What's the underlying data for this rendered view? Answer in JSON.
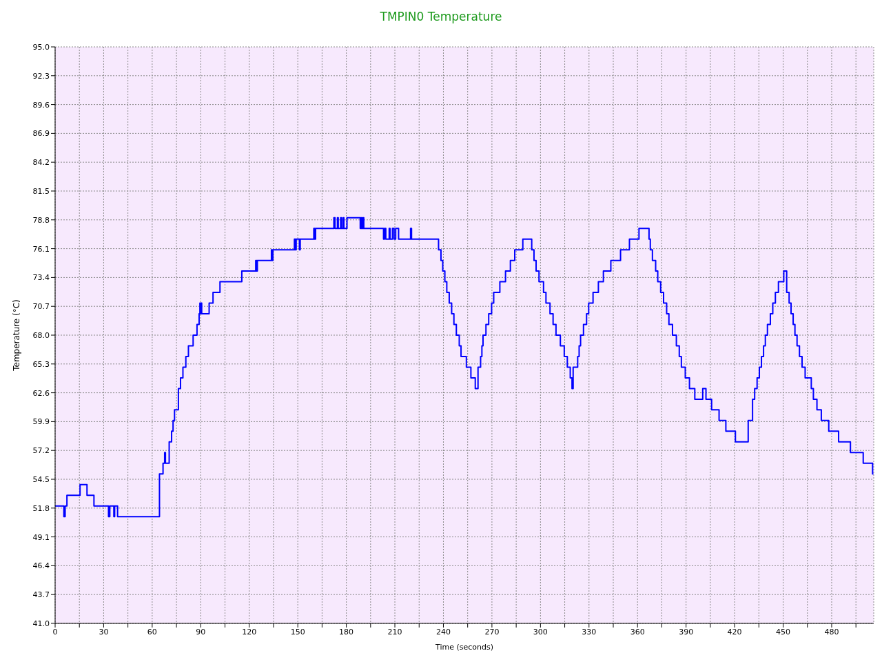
{
  "chart_data": {
    "type": "step",
    "title": "TMPIN0 Temperature",
    "xlabel": "Time (seconds)",
    "ylabel": "Temperature (°C)",
    "xlim": [
      0,
      506
    ],
    "xticks": [
      0,
      {
        "value": 15,
        "label": null
      },
      30,
      {
        "value": 45,
        "label": null
      },
      60,
      {
        "value": 75,
        "label": null
      },
      90,
      {
        "value": 105,
        "label": null
      },
      120,
      {
        "value": 135,
        "label": null
      },
      150,
      {
        "value": 165,
        "label": null
      },
      180,
      {
        "value": 195,
        "label": null
      },
      210,
      {
        "value": 225,
        "label": null
      },
      240,
      {
        "value": 255,
        "label": null
      },
      270,
      {
        "value": 285,
        "label": null
      },
      300,
      {
        "value": 315,
        "label": null
      },
      330,
      {
        "value": 345,
        "label": null
      },
      360,
      {
        "value": 375,
        "label": null
      },
      390,
      {
        "value": 405,
        "label": null
      },
      420,
      {
        "value": 435,
        "label": null
      },
      450,
      {
        "value": 465,
        "label": null
      },
      480,
      {
        "value": 495,
        "label": null
      }
    ],
    "ylim": [
      41,
      95
    ],
    "yticks": [
      {
        "value": 41,
        "label": "41.0"
      },
      {
        "value": 43.7,
        "label": "43.7"
      },
      {
        "value": 46.4,
        "label": "46.4"
      },
      {
        "value": 49.1,
        "label": "49.1"
      },
      {
        "value": 51.8,
        "label": "51.8"
      },
      {
        "value": 54.5,
        "label": "54.5"
      },
      {
        "value": 57.2,
        "label": "57.2"
      },
      {
        "value": 59.9,
        "label": "59.9"
      },
      {
        "value": 62.6,
        "label": "62.6"
      },
      {
        "value": 65.3,
        "label": "65.3"
      },
      {
        "value": 68,
        "label": "68.0"
      },
      {
        "value": 70.7,
        "label": "70.7"
      },
      {
        "value": 73.4,
        "label": "73.4"
      },
      {
        "value": 76.1,
        "label": "76.1"
      },
      {
        "value": 78.8,
        "label": "78.8"
      },
      {
        "value": 81.5,
        "label": "81.5"
      },
      {
        "value": 84.2,
        "label": "84.2"
      },
      {
        "value": 86.9,
        "label": "86.9"
      },
      {
        "value": 89.6,
        "label": "89.6"
      },
      {
        "value": 92.3,
        "label": "92.3"
      },
      {
        "value": 95,
        "label": "95.0"
      }
    ],
    "grid": true,
    "marker": "none",
    "line_style": "solid",
    "series": [
      {
        "color": "#0000ff",
        "x": [
          0,
          5.4,
          6.2,
          7.3,
          15.4,
          19.7,
          24,
          33,
          33.8,
          36.3,
          36.8,
          38.6,
          64.5,
          66.7,
          67.7,
          68.2,
          70.5,
          72,
          72.9,
          73.8,
          76.2,
          77.5,
          79,
          80.8,
          82.4,
          85.3,
          87.7,
          89,
          89.5,
          89.8,
          90.3,
          90.6,
          95.2,
          97.6,
          101.9,
          115.4,
          124,
          124.5,
          125,
          133.7,
          134.2,
          134.6,
          147.9,
          148.5,
          149,
          151,
          151.5,
          159.9,
          160.5,
          161,
          172.3,
          173,
          174.5,
          175,
          176.5,
          177,
          178,
          178.5,
          180.4,
          188.6,
          189,
          189.6,
          190.2,
          190.8,
          203,
          203.6,
          204.4,
          206.5,
          207,
          208.5,
          209.5,
          210.5,
          212.3,
          219.7,
          220.3,
          237,
          238.5,
          239.6,
          240.9,
          242.1,
          243.6,
          245.1,
          246.5,
          248,
          249.8,
          250.9,
          254.2,
          257,
          259.7,
          261.4,
          263,
          263.8,
          264.5,
          266.3,
          268,
          269.8,
          271.1,
          274.9,
          278.4,
          281.4,
          284.1,
          289.1,
          294.6,
          296,
          297.3,
          299.1,
          301.9,
          303.4,
          305.9,
          307.8,
          309.6,
          312.3,
          314.7,
          316.6,
          318.4,
          319.5,
          320.2,
          323,
          323.9,
          324.8,
          326.6,
          328.5,
          329.8,
          332.5,
          335.8,
          338.9,
          343.5,
          349.5,
          355,
          360.9,
          367.1,
          367.9,
          369.2,
          371.2,
          372.5,
          374.3,
          376.1,
          378,
          379.4,
          381.6,
          384,
          385.8,
          387.1,
          389.5,
          392.1,
          395.4,
          400.3,
          402.3,
          405.8,
          410.4,
          414.6,
          420.5,
          428.4,
          431.1,
          432.4,
          433.9,
          435.3,
          436.6,
          437.9,
          439,
          440.3,
          442.1,
          443.6,
          445.2,
          447.1,
          450.4,
          452.2,
          453.7,
          454.9,
          456.2,
          457.3,
          458.6,
          460.1,
          461.7,
          463.6,
          467.4,
          468.7,
          470.9,
          473.6,
          478.2,
          484.3,
          491.6,
          499.5,
          505.3,
          505.8
        ],
        "values": [
          52,
          51,
          52,
          53,
          54,
          53,
          52,
          51,
          52,
          51,
          52,
          51,
          55,
          56,
          57,
          56,
          58,
          59,
          60,
          61,
          63,
          64,
          65,
          66,
          67,
          68,
          69,
          70,
          71,
          70,
          71,
          70,
          71,
          72,
          73,
          74,
          75,
          74,
          75,
          76,
          75,
          76,
          77,
          76,
          77,
          76,
          77,
          78,
          77,
          78,
          79,
          78,
          79,
          78,
          79,
          78,
          79,
          78,
          79,
          78,
          79,
          78,
          79,
          78,
          77,
          78,
          77,
          78,
          77,
          78,
          77,
          78,
          77,
          78,
          77,
          76,
          75,
          74,
          73,
          72,
          71,
          70,
          69,
          68,
          67,
          66,
          65,
          64,
          63,
          65,
          66,
          67,
          68,
          69,
          70,
          71,
          72,
          73,
          74,
          75,
          76,
          77,
          76,
          75,
          74,
          73,
          72,
          71,
          70,
          69,
          68,
          67,
          66,
          65,
          64,
          63,
          65,
          66,
          67,
          68,
          69,
          70,
          71,
          72,
          73,
          74,
          75,
          76,
          77,
          78,
          77,
          76,
          75,
          74,
          73,
          72,
          71,
          70,
          69,
          68,
          67,
          66,
          65,
          64,
          63,
          62,
          63,
          62,
          61,
          60,
          59,
          58,
          60,
          62,
          63,
          64,
          65,
          66,
          67,
          68,
          69,
          70,
          71,
          72,
          73,
          74,
          72,
          71,
          70,
          69,
          68,
          67,
          66,
          65,
          64,
          63,
          62,
          61,
          60,
          59,
          58,
          57,
          56,
          55,
          55
        ]
      }
    ]
  }
}
